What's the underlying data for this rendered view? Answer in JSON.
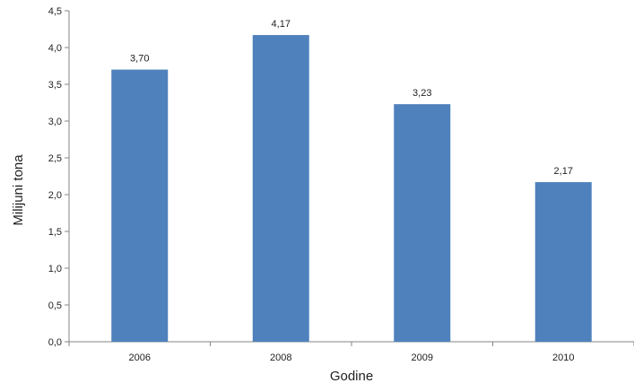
{
  "chart_data": {
    "type": "bar",
    "title": "",
    "xlabel": "Godine",
    "ylabel": "Milijuni tona",
    "categories": [
      "2006",
      "2008",
      "2009",
      "2010"
    ],
    "values": [
      3.7,
      4.17,
      3.23,
      2.17
    ],
    "value_labels": [
      "3,70",
      "4,17",
      "3,23",
      "2,17"
    ],
    "ylim": [
      0,
      4.5
    ],
    "yticks": [
      0,
      0.5,
      1.0,
      1.5,
      2.0,
      2.5,
      3.0,
      3.5,
      4.0,
      4.5
    ],
    "ytick_labels": [
      "0,0",
      "0,5",
      "1,0",
      "1,5",
      "2,0",
      "2,5",
      "3,0",
      "3,5",
      "4,0",
      "4,5"
    ],
    "grid": false,
    "legend": "none",
    "colors": {
      "bar": "#4f81bd",
      "axis": "#868686",
      "text": "#222222"
    }
  }
}
